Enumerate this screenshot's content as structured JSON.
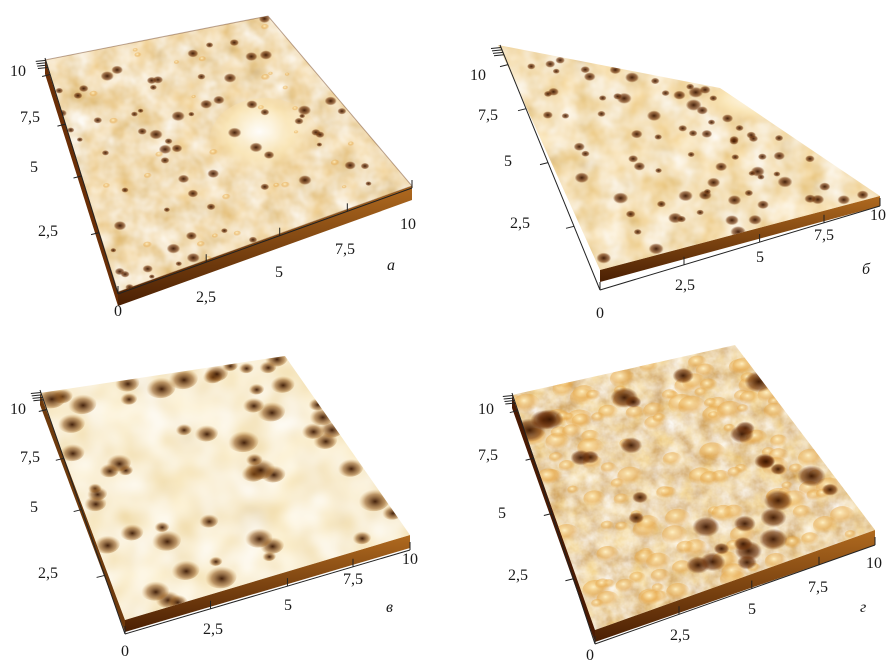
{
  "panels": [
    {
      "id": "a",
      "letter": "а",
      "z_ticks": [
        "10",
        "7,5",
        "5",
        "2,5"
      ],
      "x_ticks": [
        "0",
        "2,5",
        "5",
        "7,5",
        "10"
      ],
      "colors": {
        "dark": "#7a3a06",
        "mid": "#c9822c",
        "light": "#f2c77a",
        "highlight": "#ffffff"
      }
    },
    {
      "id": "b",
      "letter": "б",
      "z_ticks": [
        "10",
        "7,5",
        "5",
        "2,5"
      ],
      "x_ticks": [
        "0",
        "2,5",
        "5",
        "7,5",
        "10"
      ],
      "colors": {
        "dark": "#6f3307",
        "mid": "#cc8a33",
        "light": "#f5cf86",
        "highlight": "#fff6dc"
      }
    },
    {
      "id": "v",
      "letter": "в",
      "z_ticks": [
        "10",
        "7,5",
        "5",
        "2,5"
      ],
      "x_ticks": [
        "0",
        "2,5",
        "5",
        "7,5",
        "10"
      ],
      "colors": {
        "dark": "#5a2904",
        "mid": "#d7a352",
        "light": "#f7dc95",
        "highlight": "#fff3c8"
      }
    },
    {
      "id": "g",
      "letter": "г",
      "z_ticks": [
        "10",
        "7,5",
        "5",
        "2,5"
      ],
      "x_ticks": [
        "0",
        "2,5",
        "5",
        "7,5",
        "10"
      ],
      "colors": {
        "dark": "#3d1400",
        "mid": "#b8620f",
        "light": "#f0bd54",
        "highlight": "#fde6a8"
      }
    }
  ]
}
